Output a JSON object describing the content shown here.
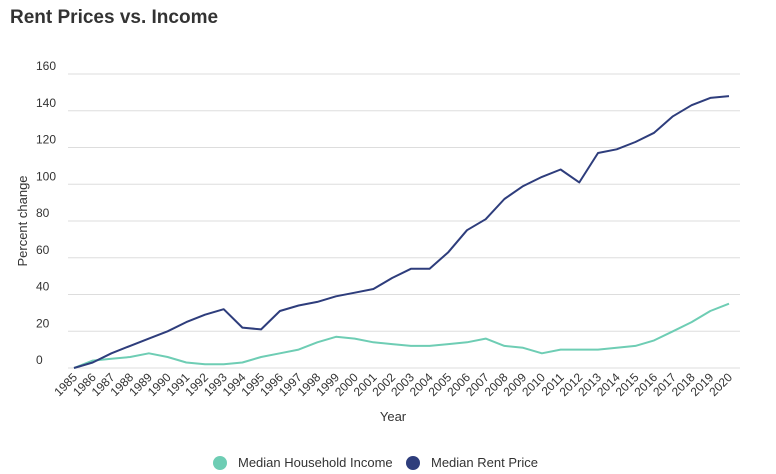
{
  "chart_data": {
    "type": "line",
    "title": "Rent Prices vs. Income",
    "xlabel": "Year",
    "ylabel": "Percent change",
    "ylim": [
      0,
      160
    ],
    "yticks": [
      0,
      20,
      40,
      60,
      80,
      100,
      120,
      140,
      160
    ],
    "grid": true,
    "legend_position": "bottom",
    "x": [
      "1985",
      "1986",
      "1987",
      "1988",
      "1989",
      "1990",
      "1991",
      "1992",
      "1993",
      "1994",
      "1995",
      "1996",
      "1997",
      "1998",
      "1999",
      "2000",
      "2001",
      "2002",
      "2003",
      "2004",
      "2005",
      "2006",
      "2007",
      "2008",
      "2009",
      "2010",
      "2011",
      "2012",
      "2013",
      "2014",
      "2015",
      "2016",
      "2017",
      "2018",
      "2019",
      "2020"
    ],
    "series": [
      {
        "name": "Median Household Income",
        "color": "#6ecdb4",
        "values": [
          0,
          4,
          5,
          6,
          8,
          6,
          3,
          2,
          2,
          3,
          6,
          8,
          10,
          14,
          17,
          16,
          14,
          13,
          12,
          12,
          13,
          14,
          16,
          12,
          11,
          8,
          10,
          10,
          10,
          11,
          12,
          15,
          20,
          25,
          31,
          35
        ]
      },
      {
        "name": "Median Rent Price",
        "color": "#2e3d7c",
        "values": [
          0,
          3,
          8,
          12,
          16,
          20,
          25,
          29,
          32,
          22,
          21,
          31,
          34,
          36,
          39,
          41,
          43,
          49,
          54,
          54,
          63,
          75,
          81,
          92,
          99,
          104,
          108,
          101,
          117,
          119,
          123,
          128,
          137,
          143,
          147,
          148
        ]
      }
    ]
  }
}
